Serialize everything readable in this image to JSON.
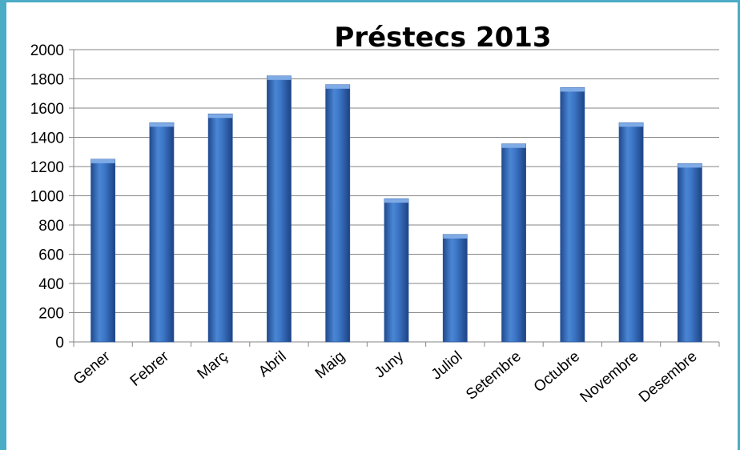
{
  "chart_data": {
    "type": "bar",
    "title": "Préstecs 2013",
    "xlabel": "",
    "ylabel": "",
    "categories": [
      "Gener",
      "Febrer",
      "Març",
      "Abril",
      "Maig",
      "Juny",
      "Juliol",
      "Setembre",
      "Octubre",
      "Novembre",
      "Desembre"
    ],
    "values": [
      1250,
      1500,
      1560,
      1820,
      1760,
      980,
      735,
      1355,
      1740,
      1500,
      1220
    ],
    "ylim": [
      0,
      2000
    ],
    "yticks": [
      0,
      200,
      400,
      600,
      800,
      1000,
      1200,
      1400,
      1600,
      1800,
      2000
    ],
    "grid": true,
    "legend": "none",
    "bar_color": "#3a6fc0",
    "frame_color": "#4bacc6"
  }
}
